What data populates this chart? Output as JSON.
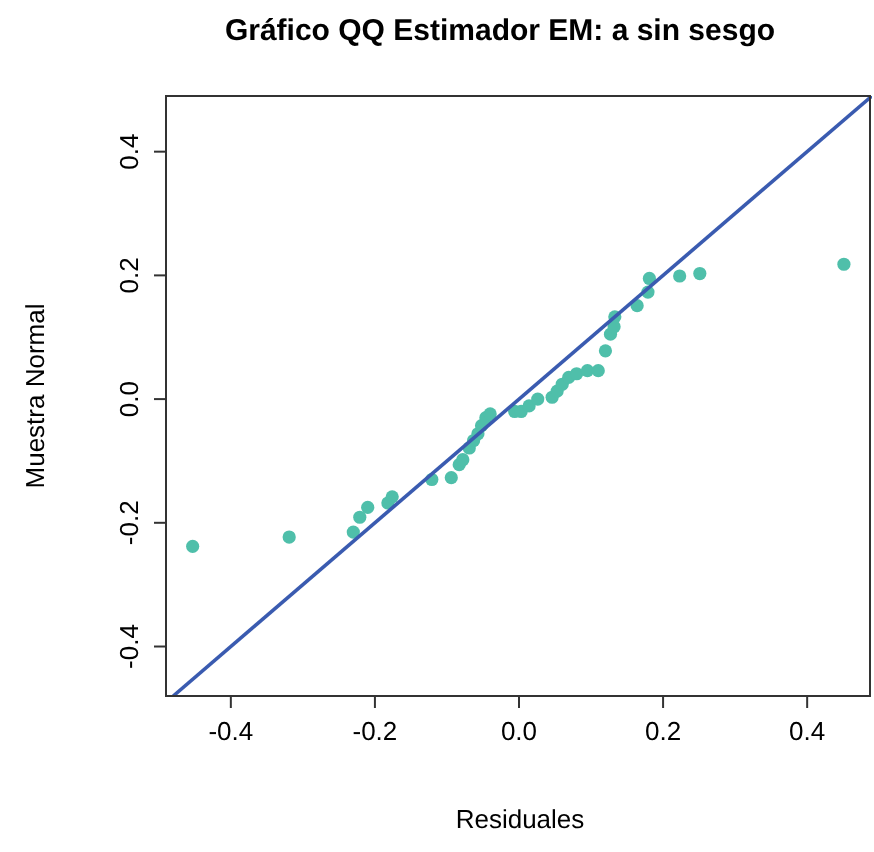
{
  "chart_data": {
    "type": "scatter",
    "title": "Gráfico QQ Estimador EM: a sin sesgo",
    "xlabel": "Residuales",
    "ylabel": "Muestra Normal",
    "xlim": [
      -0.49,
      0.49
    ],
    "ylim": [
      -0.48,
      0.49
    ],
    "xticks": [
      -0.4,
      -0.2,
      {
        "value": 0,
        "label": "0.0"
      },
      0.2,
      0.4
    ],
    "yticks": [
      -0.4,
      -0.2,
      {
        "value": 0,
        "label": "0.0"
      },
      0.2,
      0.4
    ],
    "grid": false,
    "marker": "circle",
    "series": [
      {
        "color": "#4fbfaa",
        "x": [
          -0.453,
          -0.319,
          -0.23,
          -0.221,
          -0.21,
          -0.182,
          -0.176,
          -0.121,
          -0.094,
          -0.083,
          -0.078,
          -0.069,
          -0.063,
          -0.057,
          -0.052,
          -0.046,
          -0.04,
          -0.006,
          0.003,
          0.014,
          0.026,
          0.046,
          0.053,
          0.06,
          0.069,
          0.08,
          0.095,
          0.11,
          0.12,
          0.127,
          0.132,
          0.133,
          0.164,
          0.179,
          0.181,
          0.223,
          0.251,
          0.451
        ],
        "values": [
          -0.238,
          -0.223,
          -0.215,
          -0.191,
          -0.175,
          -0.168,
          -0.158,
          -0.13,
          -0.127,
          -0.106,
          -0.098,
          -0.079,
          -0.067,
          -0.056,
          -0.043,
          -0.03,
          -0.024,
          -0.02,
          -0.02,
          -0.011,
          0.0,
          0.003,
          0.013,
          0.024,
          0.035,
          0.041,
          0.046,
          0.046,
          0.078,
          0.105,
          0.117,
          0.133,
          0.151,
          0.173,
          0.195,
          0.199,
          0.203,
          0.218
        ]
      },
      {
        "type": "line",
        "color": "#3a5bb0",
        "marker": "none",
        "line_style": "solid",
        "x": [
          -0.48,
          0.49
        ],
        "values": [
          -0.48,
          0.49
        ]
      }
    ]
  }
}
